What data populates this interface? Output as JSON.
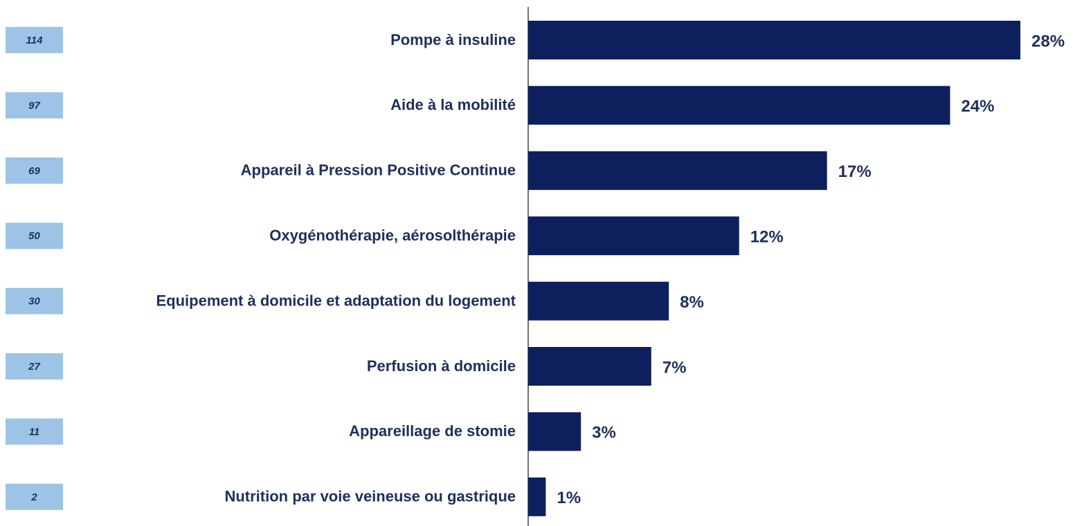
{
  "chart_data": {
    "type": "bar",
    "orientation": "horizontal",
    "color": "#0d1f5c",
    "categories": [
      "Pompe à insuline",
      "Aide à la mobilité",
      "Appareil à Pression Positive Continue",
      "Oxygénothérapie, aérosolthérapie",
      "Equipement à domicile et adaptation du logement",
      "Perfusion à domicile",
      "Appareillage de stomie",
      "Nutrition par voie veineuse ou gastrique"
    ],
    "values": [
      28,
      24,
      17,
      12,
      8,
      7,
      3,
      1
    ],
    "value_labels": [
      "28%",
      "24%",
      "17%",
      "12%",
      "8%",
      "7%",
      "3%",
      "1%"
    ],
    "counts": [
      114,
      97,
      69,
      50,
      30,
      27,
      11,
      2
    ]
  }
}
